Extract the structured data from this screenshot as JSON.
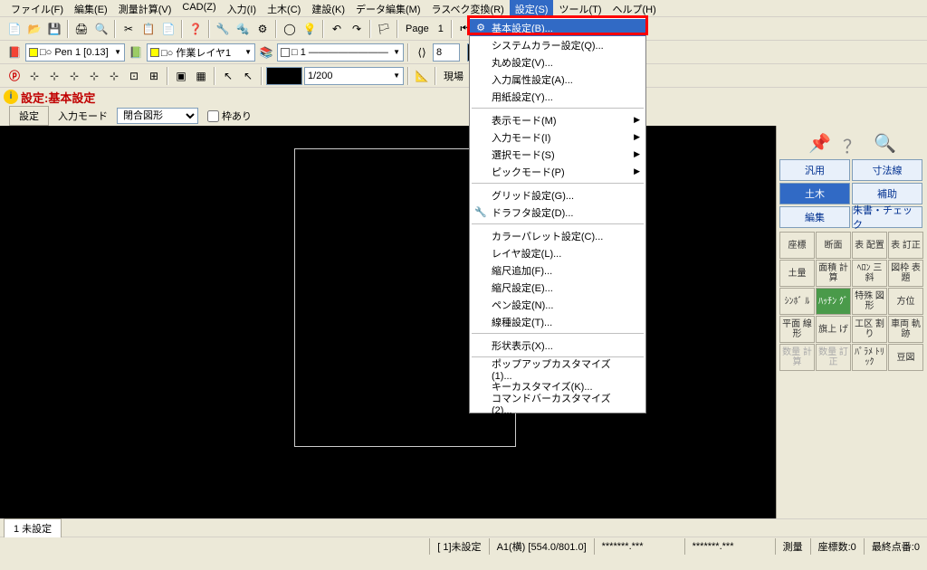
{
  "menubar": [
    "ファイル(F)",
    "編集(E)",
    "測量計算(V)",
    "CAD(Z)",
    "入力(I)",
    "土木(C)",
    "建設(K)",
    "データ編集(M)",
    "ラスベク変換(R)",
    "設定(S)",
    "ツール(T)",
    "ヘルプ(H)"
  ],
  "menubar_open_index": 9,
  "toolbar1": {
    "page_label": "Page",
    "page_val": "1"
  },
  "toolbar2": {
    "pen_combo": "□○ Pen 1  [0.13]",
    "layer_combo": "□○ 作業レイヤ1",
    "line_combo": "□ 1 ————————",
    "num": "8"
  },
  "toolbar3": {
    "scale": "1/200",
    "site": "現場"
  },
  "titlestrip": "設定:基本設定",
  "optrow": {
    "btn": "設定",
    "label": "入力モード",
    "sel": "閉合図形",
    "chk": "枠あり"
  },
  "menu": {
    "g1": [
      "基本設定(B)...",
      "システムカラー設定(Q)...",
      "丸め設定(V)...",
      "入力属性設定(A)...",
      "用紙設定(Y)..."
    ],
    "g2": [
      "表示モード(M)",
      "入力モード(I)",
      "選択モード(S)",
      "ピックモード(P)"
    ],
    "g3": [
      "グリッド設定(G)...",
      "ドラフタ設定(D)..."
    ],
    "g4": [
      "カラーパレット設定(C)...",
      "レイヤ設定(L)...",
      "縮尺追加(F)...",
      "縮尺設定(E)...",
      "ペン設定(N)...",
      "線種設定(T)..."
    ],
    "g5": [
      "形状表示(X)..."
    ],
    "g6": [
      "ポップアップカスタマイズ(1)...",
      "キーカスタマイズ(K)...",
      "コマンドバーカスタマイズ(2)..."
    ]
  },
  "rpanel": {
    "cats": [
      "汎用",
      "寸法線",
      "土木",
      "補助",
      "編集",
      "朱書・チェック"
    ],
    "cat_sel": 2,
    "cells": [
      "座標",
      "断面",
      "表\n配置",
      "表\n訂正",
      "土量",
      "面積\n計算",
      "ﾍﾛﾝ\n三斜",
      "図枠\n表題",
      "ｼﾝﾎﾞ\nﾙ",
      "ﾊｯﾁﾝ\nｸﾞ",
      "特殊\n図形",
      "方位",
      "平面\n線形",
      "旗上\nげ",
      "工区\n割り",
      "車両\n軌跡",
      "数量\n計算",
      "数量\n訂正",
      "ﾊﾟﾗﾒ\nﾄﾘｯｸ",
      "豆図"
    ],
    "cell_green": 9,
    "cell_dis": [
      16,
      17
    ]
  },
  "tab": "1  未設定",
  "status": {
    "a": "[ 1]未設定",
    "b": "A1(横) [554.0/801.0]",
    "c": "*******.***",
    "d": "*******.***",
    "e": "測量",
    "f": "座標数:0",
    "g": "最終点番:0"
  }
}
